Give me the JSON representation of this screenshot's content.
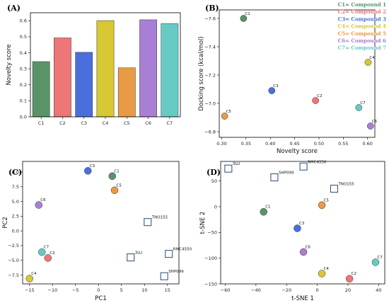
{
  "colors": {
    "C1": "#5a9367",
    "C2": "#ee7676",
    "C3": "#4a6fdc",
    "C4": "#d8c832",
    "C5": "#e99a45",
    "C6": "#a97fd5",
    "C7": "#67cbc4"
  },
  "legend": [
    {
      "key": "C1",
      "text": "C1= Compound 1"
    },
    {
      "key": "C2",
      "text": "C2= Compound 2"
    },
    {
      "key": "C3",
      "text": "C3= Compound 3"
    },
    {
      "key": "C4",
      "text": "C4= Compound 4"
    },
    {
      "key": "C5",
      "text": "C5= Compound 5"
    },
    {
      "key": "C6",
      "text": "C6= Compound 6"
    },
    {
      "key": "C7",
      "text": "C7= Compound 7"
    }
  ],
  "chart_data": [
    {
      "panel": "(A)",
      "type": "bar",
      "categories": [
        "C1",
        "C2",
        "C3",
        "C4",
        "C5",
        "C6",
        "C7"
      ],
      "values": [
        0.345,
        0.493,
        0.403,
        0.601,
        0.306,
        0.606,
        0.582
      ],
      "xlabel": "",
      "ylabel": "Novelty score",
      "ylim": [
        0,
        0.65
      ],
      "yticks": [
        0.0,
        0.1,
        0.2,
        0.3,
        0.4,
        0.5,
        0.6
      ],
      "ytick_labels": [
        "0.0",
        "0.1",
        "0.2",
        "0.3",
        "0.4",
        "0.5",
        "0.6"
      ]
    },
    {
      "panel": "(B)",
      "type": "scatter",
      "xlabel": "Novelty score",
      "ylabel": "Docking score (kcal/mol)",
      "xlim": [
        0.295,
        0.615
      ],
      "ylim": [
        -6.76,
        -7.66
      ],
      "y_inverted": true,
      "xticks": [
        0.3,
        0.35,
        0.4,
        0.45,
        0.5,
        0.55,
        0.6
      ],
      "xtick_labels": [
        "0.30",
        "0.35",
        "0.40",
        "0.45",
        "0.50",
        "0.55",
        "0.60"
      ],
      "yticks": [
        -7.6,
        -7.4,
        -7.2,
        -7.0,
        -6.8
      ],
      "ytick_labels": [
        "−7.6",
        "−7.4",
        "−7.2",
        "−7.0",
        "−6.8"
      ],
      "points": [
        {
          "label": "C1",
          "x": 0.345,
          "y": -7.6
        },
        {
          "label": "C2",
          "x": 0.493,
          "y": -7.02
        },
        {
          "label": "C3",
          "x": 0.403,
          "y": -7.09
        },
        {
          "label": "C4",
          "x": 0.601,
          "y": -7.29
        },
        {
          "label": "C5",
          "x": 0.306,
          "y": -6.91
        },
        {
          "label": "C6",
          "x": 0.606,
          "y": -6.84
        },
        {
          "label": "C7",
          "x": 0.582,
          "y": -6.97
        }
      ]
    },
    {
      "panel": "(C)",
      "type": "scatter",
      "xlabel": "PC1",
      "ylabel": "PC2",
      "xlim": [
        -16.5,
        17.5
      ],
      "ylim": [
        -9.0,
        11.8
      ],
      "xticks": [
        -15,
        -10,
        -5,
        0,
        5,
        10,
        15
      ],
      "xtick_labels": [
        "−15",
        "−10",
        "−5",
        "0",
        "5",
        "10",
        "15"
      ],
      "yticks": [
        -7.5,
        -5.0,
        -2.5,
        0.0,
        2.5,
        5.0,
        7.5,
        10.0
      ],
      "ytick_labels": [
        "−7.5",
        "−5.0",
        "−2.5",
        "0.0",
        "2.5",
        "5.0",
        "7.5",
        "10.0"
      ],
      "compounds": [
        {
          "label": "C1",
          "x": 3.0,
          "y": 9.3
        },
        {
          "label": "C2",
          "x": -11.0,
          "y": -4.6
        },
        {
          "label": "C3",
          "x": -2.3,
          "y": 10.2
        },
        {
          "label": "C4",
          "x": -15.0,
          "y": -8.1
        },
        {
          "label": "C5",
          "x": 3.5,
          "y": 6.9
        },
        {
          "label": "C6",
          "x": -13.0,
          "y": 4.4
        },
        {
          "label": "C7",
          "x": -12.3,
          "y": -3.6
        }
      ],
      "references": [
        {
          "label": "TNO155",
          "x": 10.7,
          "y": 1.5
        },
        {
          "label": "3LU",
          "x": 7.0,
          "y": -4.5
        },
        {
          "label": "RMC4550",
          "x": 15.3,
          "y": -3.9
        },
        {
          "label": "SHP099",
          "x": 14.3,
          "y": -7.7
        }
      ]
    },
    {
      "panel": "(D)",
      "type": "scatter",
      "xlabel": "t-SNE 1",
      "ylabel": "t-SNE 2",
      "xlim": [
        -63,
        44
      ],
      "ylim": [
        -150,
        88
      ],
      "xticks": [
        -60,
        -40,
        -20,
        0,
        20,
        40
      ],
      "xtick_labels": [
        "−60",
        "−40",
        "−20",
        "0",
        "20",
        "40"
      ],
      "yticks": [
        -150,
        -100,
        -50,
        0,
        50
      ],
      "ytick_labels": [
        "−150",
        "−100",
        "−50",
        "0",
        "50"
      ],
      "compounds": [
        {
          "label": "C1",
          "x": -35.0,
          "y": -10.0
        },
        {
          "label": "C2",
          "x": 21.0,
          "y": -140.0
        },
        {
          "label": "C3",
          "x": -13.0,
          "y": -42.0
        },
        {
          "label": "C4",
          "x": 3.0,
          "y": -130.0
        },
        {
          "label": "C5",
          "x": 3.0,
          "y": 3.0
        },
        {
          "label": "C6",
          "x": -9.0,
          "y": -88.0
        },
        {
          "label": "C7",
          "x": 38.0,
          "y": -108.0
        }
      ],
      "references": [
        {
          "label": "3LU",
          "x": -58.0,
          "y": 74.0
        },
        {
          "label": "SHP099",
          "x": -28.0,
          "y": 57.0
        },
        {
          "label": "RMC4550",
          "x": -9.0,
          "y": 78.0
        },
        {
          "label": "TNO155",
          "x": 11.0,
          "y": 35.0
        }
      ]
    }
  ]
}
